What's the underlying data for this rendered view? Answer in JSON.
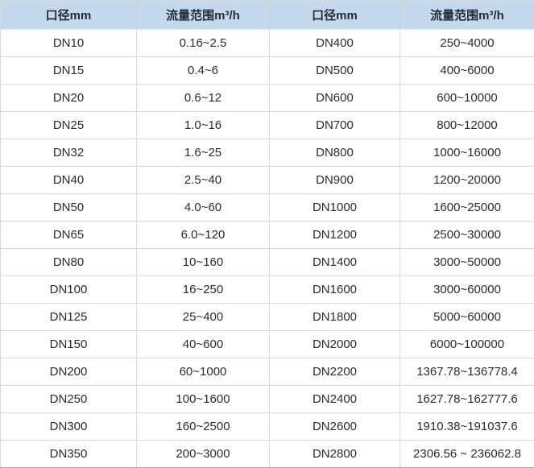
{
  "table": {
    "headers": [
      "口径mm",
      "流量范围m³/h",
      "口径mm",
      "流量范围m³/h"
    ],
    "rows": [
      [
        "DN10",
        "0.16~2.5",
        "DN400",
        "250~4000"
      ],
      [
        "DN15",
        "0.4~6",
        "DN500",
        "400~6000"
      ],
      [
        "DN20",
        "0.6~12",
        "DN600",
        "600~10000"
      ],
      [
        "DN25",
        "1.0~16",
        "DN700",
        "800~12000"
      ],
      [
        "DN32",
        "1.6~25",
        "DN800",
        "1000~16000"
      ],
      [
        "DN40",
        "2.5~40",
        "DN900",
        "1200~20000"
      ],
      [
        "DN50",
        "4.0~60",
        "DN1000",
        "1600~25000"
      ],
      [
        "DN65",
        "6.0~120",
        "DN1200",
        "2500~30000"
      ],
      [
        "DN80",
        "10~160",
        "DN1400",
        "3000~50000"
      ],
      [
        "DN100",
        "16~250",
        "DN1600",
        "3000~60000"
      ],
      [
        "DN125",
        "25~400",
        "DN1800",
        "5000~60000"
      ],
      [
        "DN150",
        "40~600",
        "DN2000",
        "6000~100000"
      ],
      [
        "DN200",
        "60~1000",
        "DN2200",
        "1367.78~136778.4"
      ],
      [
        "DN250",
        "100~1600",
        "DN2400",
        "1627.78~162777.6"
      ],
      [
        "DN300",
        "160~2500",
        "DN2600",
        "1910.38~191037.6"
      ],
      [
        "DN350",
        "200~3000",
        "DN2800",
        "2306.56 ~ 236062.8"
      ]
    ]
  },
  "colors": {
    "header_bg": "#c5d9ee",
    "grid_line": "#d9d9d9",
    "outer_bottom_border": "#a6a6a6",
    "body_text": "#2b2b2b",
    "header_text": "#222c38",
    "cell_bg": "#ffffff"
  }
}
